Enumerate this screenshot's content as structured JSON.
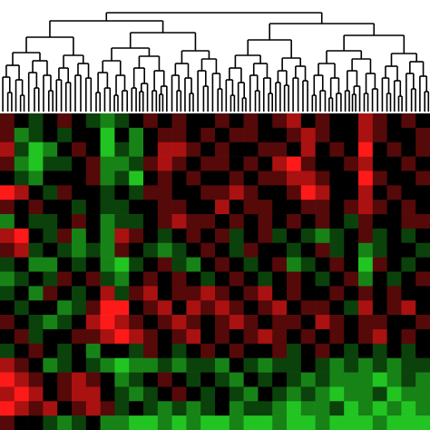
{
  "chart_data": {
    "type": "heatmap",
    "zlim": [
      -3,
      3
    ],
    "colors": {
      "low": "#22c422",
      "mid": "#000000",
      "high": "#ff1a1a"
    },
    "rows": [
      [
        1,
        0,
        -1,
        0,
        1,
        0,
        -1,
        -2,
        -1,
        0,
        1,
        0,
        1,
        0,
        0,
        1,
        0,
        1,
        0,
        1,
        2,
        0,
        1,
        0,
        0,
        2,
        1,
        0,
        1,
        0
      ],
      [
        1,
        -2,
        -1,
        0,
        -1,
        0,
        0,
        -3,
        0,
        -2,
        0,
        1,
        1,
        0,
        1,
        0,
        1,
        1,
        0,
        0,
        1,
        2,
        1,
        0,
        0,
        2,
        1,
        0,
        0,
        1
      ],
      [
        2,
        -1,
        -3,
        -2,
        0,
        1,
        0,
        -3,
        -1,
        -2,
        0,
        2,
        2,
        1,
        0,
        1,
        0,
        0,
        1,
        1,
        0,
        2,
        0,
        1,
        0,
        3,
        0,
        1,
        0,
        1
      ],
      [
        1,
        -2,
        -3,
        -1,
        -1,
        0,
        1,
        -2,
        -2,
        -1,
        1,
        2,
        1,
        0,
        1,
        1,
        0,
        1,
        0,
        2,
        3,
        1,
        0,
        0,
        1,
        2,
        0,
        0,
        1,
        0
      ],
      [
        0,
        -1,
        -2,
        0,
        0,
        0,
        1,
        -2,
        -1,
        -3,
        0,
        1,
        0,
        1,
        0,
        0,
        1,
        0,
        1,
        1,
        2,
        2,
        1,
        0,
        0,
        3,
        1,
        0,
        0,
        1
      ],
      [
        3,
        2,
        0,
        -1,
        1,
        0,
        0,
        -1,
        0,
        -1,
        1,
        1,
        0,
        0,
        1,
        1,
        2,
        1,
        0,
        0,
        1,
        3,
        2,
        0,
        0,
        2,
        0,
        1,
        0,
        0
      ],
      [
        1,
        0,
        1,
        0,
        0,
        -1,
        0,
        -1,
        -1,
        0,
        0,
        1,
        1,
        0,
        0,
        2,
        0,
        1,
        1,
        0,
        0,
        1,
        1,
        0,
        1,
        2,
        1,
        0,
        1,
        0
      ],
      [
        -2,
        0,
        -1,
        -1,
        0,
        1,
        0,
        -2,
        -1,
        -1,
        0,
        1,
        2,
        1,
        1,
        0,
        1,
        0,
        1,
        0,
        1,
        0,
        1,
        0,
        -1,
        1,
        0,
        0,
        1,
        1
      ],
      [
        2,
        3,
        0,
        -1,
        1,
        -2,
        0,
        -2,
        2,
        1,
        0,
        -1,
        0,
        1,
        0,
        1,
        -1,
        0,
        1,
        -1,
        0,
        -1,
        -2,
        -1,
        0,
        1,
        -1,
        0,
        -1,
        0
      ],
      [
        1,
        2,
        -1,
        0,
        -1,
        -2,
        -1,
        -2,
        1,
        0,
        -1,
        -2,
        -1,
        0,
        1,
        0,
        -1,
        1,
        0,
        0,
        -1,
        0,
        1,
        -1,
        0,
        -2,
        -1,
        0,
        0,
        -1
      ],
      [
        -1,
        0,
        -2,
        -2,
        0,
        -1,
        0,
        -2,
        -3,
        -1,
        0,
        1,
        -1,
        -2,
        0,
        1,
        0,
        -1,
        0,
        1,
        -2,
        -1,
        0,
        1,
        0,
        -3,
        1,
        0,
        -1,
        0
      ],
      [
        -2,
        -1,
        0,
        -1,
        1,
        0,
        1,
        -1,
        -2,
        0,
        1,
        0,
        1,
        0,
        -1,
        0,
        1,
        0,
        -1,
        0,
        1,
        0,
        -1,
        0,
        1,
        -2,
        0,
        -1,
        0,
        1
      ],
      [
        -1,
        0,
        -2,
        1,
        0,
        -1,
        0,
        2,
        -1,
        1,
        2,
        0,
        1,
        1,
        2,
        1,
        0,
        1,
        2,
        0,
        1,
        0,
        0,
        1,
        0,
        1,
        0,
        1,
        0,
        0
      ],
      [
        0,
        -1,
        0,
        0,
        -2,
        -1,
        1,
        3,
        3,
        0,
        1,
        2,
        0,
        2,
        1,
        2,
        1,
        0,
        1,
        2,
        0,
        1,
        1,
        0,
        -1,
        2,
        0,
        1,
        2,
        0
      ],
      [
        1,
        0,
        -1,
        -2,
        -1,
        0,
        2,
        3,
        2,
        1,
        0,
        1,
        2,
        1,
        0,
        1,
        2,
        1,
        0,
        1,
        1,
        0,
        2,
        1,
        0,
        1,
        1,
        0,
        0,
        1
      ],
      [
        0,
        1,
        -1,
        0,
        0,
        1,
        1,
        2,
        3,
        2,
        1,
        0,
        1,
        2,
        0,
        1,
        0,
        1,
        2,
        1,
        0,
        1,
        0,
        1,
        0,
        1,
        2,
        0,
        1,
        0
      ],
      [
        -1,
        0,
        1,
        0,
        -1,
        0,
        -2,
        0,
        0,
        -1,
        1,
        0,
        -1,
        0,
        1,
        0,
        1,
        0,
        0,
        1,
        -1,
        0,
        1,
        0,
        -1,
        0,
        -1,
        0,
        -1,
        0
      ],
      [
        2,
        1,
        0,
        -2,
        -1,
        0,
        -1,
        -2,
        -3,
        -2,
        -2,
        -1,
        -2,
        -1,
        -1,
        -2,
        0,
        -1,
        -2,
        -1,
        -1,
        0,
        -1,
        -2,
        -1,
        -2,
        -1,
        -2,
        -1,
        -1
      ],
      [
        3,
        2,
        1,
        0,
        1,
        2,
        1,
        0,
        -2,
        -1,
        0,
        1,
        0,
        -1,
        0,
        -1,
        -2,
        0,
        -1,
        0,
        -1,
        -2,
        -1,
        -2,
        -2,
        -2,
        -3,
        -2,
        -1,
        -2
      ],
      [
        2,
        3,
        2,
        0,
        1,
        2,
        2,
        0,
        -1,
        -2,
        -1,
        0,
        1,
        0,
        -1,
        0,
        -1,
        -2,
        0,
        -1,
        -2,
        -1,
        -2,
        -3,
        -2,
        -2,
        -1,
        -3,
        -2,
        -2
      ],
      [
        3,
        2,
        1,
        2,
        0,
        1,
        2,
        1,
        -1,
        0,
        -1,
        -2,
        -1,
        -2,
        -1,
        0,
        -2,
        -1,
        -1,
        -2,
        -3,
        -2,
        -2,
        -1,
        -3,
        -2,
        -3,
        -2,
        -3,
        -2
      ],
      [
        1,
        0,
        0,
        -1,
        -2,
        -1,
        0,
        -2,
        -2,
        -3,
        -3,
        -2,
        -3,
        -2,
        -3,
        -3,
        -2,
        -3,
        -3,
        -2,
        -3,
        -3,
        -2,
        -3,
        -3,
        -3,
        -2,
        -3,
        -3,
        -3
      ]
    ]
  }
}
